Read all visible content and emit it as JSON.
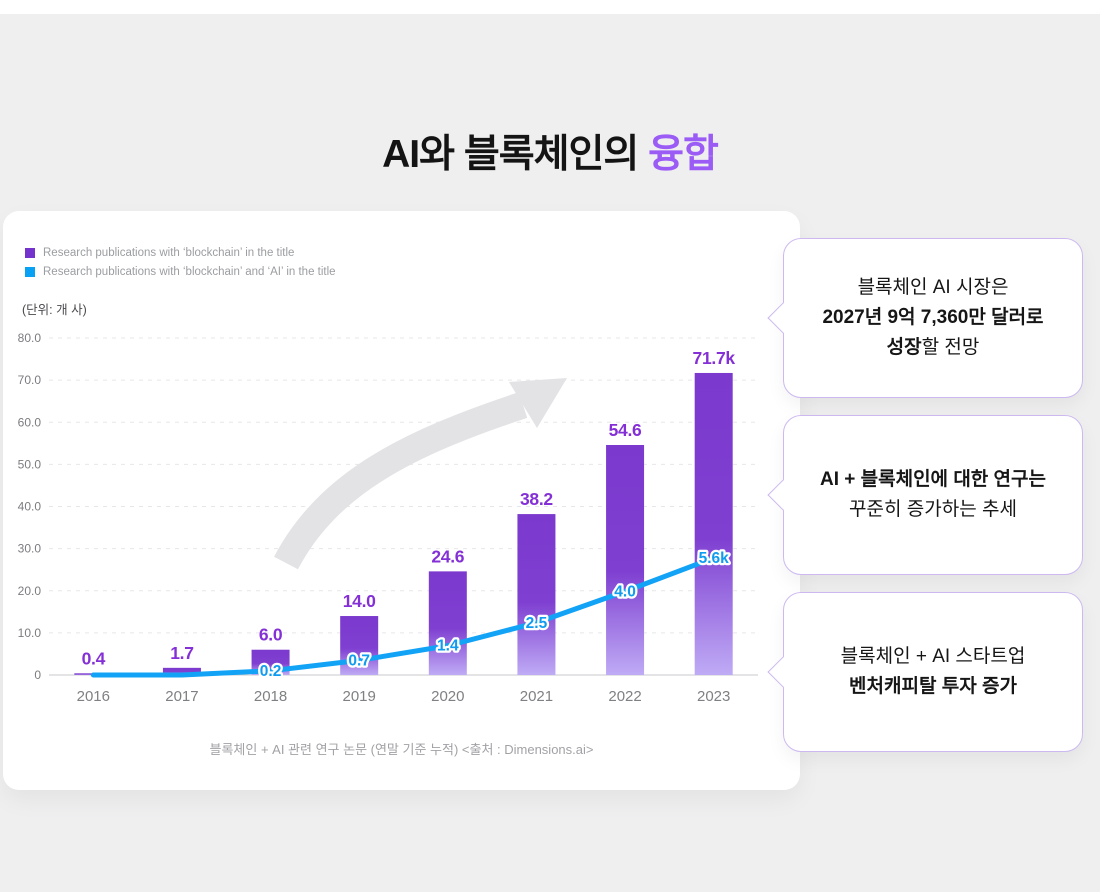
{
  "page": {
    "title": {
      "prefix": "AI와 블록체인의 ",
      "accent": "융합"
    },
    "accent_color": "#9B5BF5",
    "background_color": "#EFEFF0"
  },
  "chart_card": {
    "legend": [
      {
        "label": "Research publications with ‘blockchain’ in the title",
        "color": "#7333CC"
      },
      {
        "label": "Research publications with ‘blockchain’ and ‘AI’ in the title",
        "color": "#09A1F4"
      }
    ],
    "unit_label": "(단위: 개 사)",
    "caption": "블록체인 + AI 관련 연구 논문 (연말 기준 누적) <출처 : Dimensions.ai>"
  },
  "chart_data": {
    "type": "bar+line",
    "title": "블록체인 + AI 관련 연구 논문 (연말 기준 누적)",
    "source": "Dimensions.ai",
    "categories": [
      "2016",
      "2017",
      "2018",
      "2019",
      "2020",
      "2021",
      "2022",
      "2023"
    ],
    "ylim": [
      0,
      80
    ],
    "yticks": [
      "80.0",
      "70.0",
      "60.0",
      "50.0",
      "40.0",
      "30.0",
      "20.0",
      "10.0",
      "0"
    ],
    "grid": "horizontal-dashed",
    "legend_position": "top-left",
    "series": [
      {
        "name": "Research publications with ‘blockchain’ in the title",
        "type": "bar",
        "values": [
          0.4,
          1.7,
          6.0,
          14.0,
          24.6,
          38.2,
          54.6,
          71.7
        ],
        "labels": [
          "0.4",
          "1.7",
          "6.0",
          "14.0",
          "24.6",
          "38.2",
          "54.6",
          "71.7k"
        ],
        "color_top": "#7B39CD",
        "color_bottom": "#BFABF5",
        "label_color": "#8430D6"
      },
      {
        "name": "Research publications with ‘blockchain’ and ‘AI’ in the title",
        "type": "line",
        "values": [
          0,
          0,
          0.2,
          0.7,
          1.4,
          2.5,
          4.0,
          5.6
        ],
        "labels": [
          "",
          "",
          "0.2",
          "0.7",
          "1.4",
          "2.5",
          "4.0",
          "5.6k"
        ],
        "color": "#12A3F6",
        "label_color": "#0F9BF0"
      }
    ],
    "annotations": [
      "upward-arrow-watermark"
    ]
  },
  "callouts": [
    {
      "lines": [
        [
          {
            "text": "블록체인 AI 시장은",
            "bold": false
          }
        ],
        [
          {
            "text": "2027년 9억 7,360만 달러로",
            "bold": true
          }
        ],
        [
          {
            "text": "성장",
            "bold": true
          },
          {
            "text": "할 전망",
            "bold": false
          }
        ]
      ]
    },
    {
      "lines": [
        [
          {
            "text": "AI + 블록체인에 대한 연구는",
            "bold": true
          }
        ],
        [
          {
            "text": "꾸준히 증가하는 추세",
            "bold": false
          }
        ]
      ]
    },
    {
      "lines": [
        [
          {
            "text": "블록체인 + AI 스타트업",
            "bold": false
          }
        ],
        [
          {
            "text": "벤처캐피탈 투자 증가",
            "bold": true
          }
        ]
      ]
    }
  ]
}
